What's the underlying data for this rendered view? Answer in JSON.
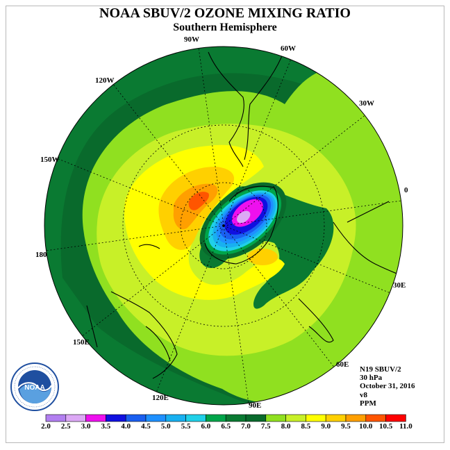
{
  "title": "NOAA SBUV/2 OZONE MIXING RATIO",
  "subtitle": "Southern Hemisphere",
  "longitude_labels": {
    "lon_90w": "90W",
    "lon_60w": "60W",
    "lon_30w": "30W",
    "lon_120w": "120W",
    "lon_150w": "150W",
    "lon_0": "0",
    "lon_180": "180",
    "lon_30e": "30E",
    "lon_150e": "150E",
    "lon_60e": "60E",
    "lon_120e": "120E",
    "lon_90e": "90E"
  },
  "info": {
    "satellite": "N19 SBUV/2",
    "level": "30 hPa",
    "date": "October 31, 2016",
    "version": "v8",
    "units": "PPM"
  },
  "logo": {
    "text": "NOAA",
    "ring_text": "NATIONAL OCEANIC AND ATMOSPHERIC ADMINISTRATION · U.S. DEPARTMENT OF COMMERCE"
  },
  "colorbar": {
    "ticks": [
      "2.0",
      "2.5",
      "3.0",
      "3.5",
      "4.0",
      "4.5",
      "5.0",
      "5.5",
      "6.0",
      "6.5",
      "7.0",
      "7.5",
      "8.0",
      "8.5",
      "9.0",
      "9.5",
      "10.0",
      "10.5",
      "11.0"
    ],
    "colors": [
      "#b27ff0",
      "#dca8f5",
      "#ee10ee",
      "#1010e0",
      "#1a5ff0",
      "#1e90ff",
      "#18b0f0",
      "#20d0e8",
      "#00a54a",
      "#0a7a32",
      "#096a2c",
      "#90e020",
      "#c8f028",
      "#ffff00",
      "#ffd000",
      "#ff9f00",
      "#ff5500",
      "#ff0000",
      "#a0522d"
    ]
  },
  "colors": {
    "lvl_6_5": "#0a7a32",
    "lvl_7_0": "#096a2c",
    "lvl_7_5": "#90e020",
    "lvl_8_0": "#c8f028",
    "lvl_8_5": "#ffff00",
    "lvl_9_0": "#ffd000",
    "lvl_9_5": "#ff9f00",
    "lvl_10_0": "#ff5500"
  }
}
